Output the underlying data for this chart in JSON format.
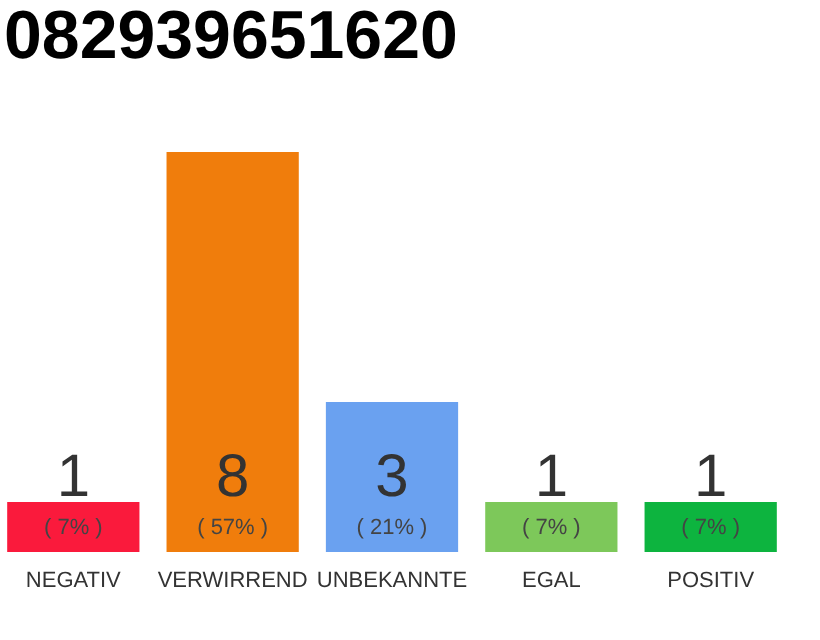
{
  "chart_data": {
    "type": "bar",
    "title": "082939651620",
    "categories": [
      "NEGATIV",
      "VERWIRREND",
      "UNBEKANNTE",
      "EGAL",
      "POSITIV"
    ],
    "values": [
      1,
      8,
      3,
      1,
      1
    ],
    "colors": [
      "#fa1a3c",
      "#f07d0c",
      "#6aa1f0",
      "#7dc85a",
      "#0db43f"
    ],
    "ylim": [
      0,
      8
    ],
    "data_labels": true,
    "annotations": [
      "( 7% )",
      "( 57% )",
      "( 21% )",
      "( 7% )",
      "( 7% )"
    ]
  }
}
